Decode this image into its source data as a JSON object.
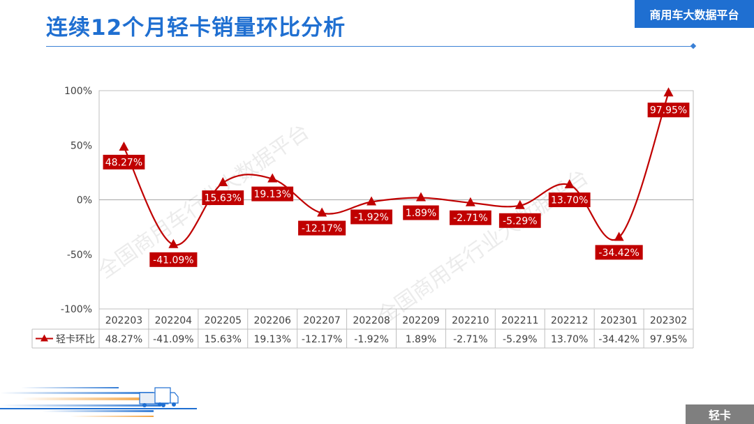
{
  "page": {
    "title": "连续12个月轻卡销量环比分析",
    "brand": "商用车大数据平台",
    "section_tag": "轻卡",
    "watermark": "全国商用车行业大数据平台"
  },
  "colors": {
    "title_blue": "#1f6fd1",
    "series_red": "#c00000",
    "grid": "#bfbfbf",
    "tag_gray": "#7f7f7f"
  },
  "chart_data": {
    "type": "line",
    "categories": [
      "202203",
      "202204",
      "202205",
      "202206",
      "202207",
      "202208",
      "202209",
      "202210",
      "202211",
      "202212",
      "202301",
      "202302"
    ],
    "series": [
      {
        "name": "轻卡环比",
        "values": [
          48.27,
          -41.09,
          15.63,
          19.13,
          -12.17,
          -1.92,
          1.89,
          -2.71,
          -5.29,
          13.7,
          -34.42,
          97.95
        ],
        "labels": [
          "48.27%",
          "-41.09%",
          "15.63%",
          "19.13%",
          "-12.17%",
          "-1.92%",
          "1.89%",
          "-2.71%",
          "-5.29%",
          "13.70%",
          "-34.42%",
          "97.95%"
        ],
        "marker": "triangle",
        "color": "#c00000"
      }
    ],
    "ylim": [
      -100,
      100
    ],
    "yticks": [
      100,
      50,
      0,
      -50,
      -100
    ],
    "ytick_labels": [
      "100%",
      "50%",
      "0%",
      "-50%",
      "-100%"
    ],
    "data_table": true,
    "legend": "data-table-left",
    "grid": false,
    "zero_line": true
  }
}
